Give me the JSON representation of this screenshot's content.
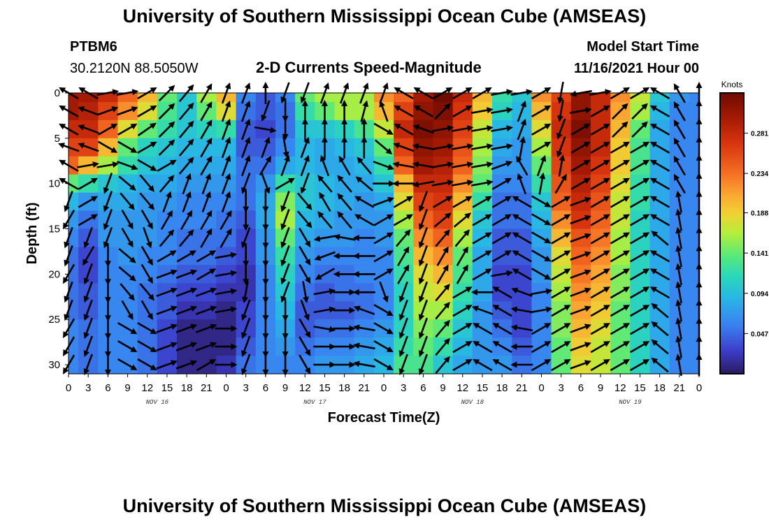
{
  "title_top": "University of Southern Mississippi Ocean Cube (AMSEAS)",
  "title_bottom": "University of Southern Mississippi Ocean Cube (AMSEAS)",
  "station": {
    "name": "PTBM6",
    "coords": "30.2120N  88.5050W"
  },
  "model_start": {
    "label": "Model Start Time",
    "value": "11/16/2021 Hour 00"
  },
  "chart_data": {
    "type": "heatmap",
    "title": "2-D Currents Speed-Magnitude",
    "xlabel": "Forecast Time(Z)",
    "ylabel": "Depth (ft)",
    "x_ticks": [
      "0",
      "3",
      "6",
      "9",
      "12",
      "15",
      "18",
      "21",
      "0",
      "3",
      "6",
      "9",
      "12",
      "15",
      "18",
      "21",
      "0",
      "3",
      "6",
      "9",
      "12",
      "15",
      "18",
      "21",
      "0",
      "3",
      "6",
      "9",
      "12",
      "15",
      "18",
      "21",
      "0"
    ],
    "day_labels": [
      "NOV 16",
      "NOV 17",
      "NOV 18",
      "NOV 19"
    ],
    "y_ticks": [
      0,
      5,
      10,
      15,
      20,
      25,
      30
    ],
    "ylim": [
      0,
      31
    ],
    "xlim_hours": [
      0,
      96
    ],
    "colorbar": {
      "unit": "Knots",
      "ticks": [
        "0.281",
        "0.234",
        "0.188",
        "0.141",
        "0.094",
        "0.047"
      ],
      "range": [
        0,
        0.328
      ]
    },
    "columns_hours": [
      0,
      3,
      6,
      9,
      12,
      15,
      18,
      21,
      24,
      27,
      30,
      33,
      36,
      39,
      42,
      45,
      48,
      51,
      54,
      57,
      60,
      63,
      66,
      69,
      72,
      75,
      78,
      81,
      84,
      87,
      90,
      93,
      96
    ],
    "depth_rows_ft": [
      0,
      2,
      4,
      6,
      8,
      10,
      12,
      14,
      16,
      18,
      20,
      22,
      24,
      26,
      28,
      30
    ],
    "speed_knots": [
      [
        0.3,
        0.3,
        0.28,
        0.24,
        0.2,
        0.14,
        0.1,
        0.16,
        0.2,
        0.06,
        0.04,
        0.06,
        0.14,
        0.16,
        0.16,
        0.16,
        0.22,
        0.24,
        0.3,
        0.33,
        0.28,
        0.2,
        0.12,
        0.1,
        0.22,
        0.26,
        0.31,
        0.28,
        0.22,
        0.17,
        0.1,
        0.07,
        0.06
      ],
      [
        0.3,
        0.29,
        0.26,
        0.22,
        0.18,
        0.13,
        0.1,
        0.14,
        0.18,
        0.05,
        0.04,
        0.05,
        0.12,
        0.14,
        0.16,
        0.16,
        0.2,
        0.26,
        0.31,
        0.32,
        0.27,
        0.19,
        0.11,
        0.09,
        0.2,
        0.27,
        0.31,
        0.28,
        0.21,
        0.16,
        0.09,
        0.06,
        0.06
      ],
      [
        0.28,
        0.28,
        0.24,
        0.18,
        0.14,
        0.12,
        0.1,
        0.11,
        0.12,
        0.04,
        0.03,
        0.05,
        0.1,
        0.1,
        0.11,
        0.13,
        0.17,
        0.28,
        0.32,
        0.31,
        0.26,
        0.17,
        0.09,
        0.08,
        0.18,
        0.28,
        0.32,
        0.28,
        0.2,
        0.14,
        0.08,
        0.06,
        0.06
      ],
      [
        0.26,
        0.26,
        0.2,
        0.14,
        0.11,
        0.1,
        0.09,
        0.09,
        0.09,
        0.04,
        0.04,
        0.06,
        0.09,
        0.08,
        0.09,
        0.1,
        0.14,
        0.26,
        0.31,
        0.3,
        0.25,
        0.16,
        0.08,
        0.07,
        0.16,
        0.27,
        0.31,
        0.28,
        0.19,
        0.13,
        0.08,
        0.06,
        0.06
      ],
      [
        0.24,
        0.2,
        0.16,
        0.12,
        0.1,
        0.09,
        0.08,
        0.08,
        0.08,
        0.05,
        0.05,
        0.08,
        0.09,
        0.08,
        0.08,
        0.09,
        0.12,
        0.24,
        0.3,
        0.29,
        0.24,
        0.15,
        0.07,
        0.07,
        0.14,
        0.26,
        0.3,
        0.27,
        0.19,
        0.13,
        0.08,
        0.06,
        0.06
      ],
      [
        0.14,
        0.12,
        0.1,
        0.09,
        0.08,
        0.08,
        0.07,
        0.07,
        0.07,
        0.05,
        0.07,
        0.12,
        0.1,
        0.09,
        0.08,
        0.08,
        0.1,
        0.2,
        0.28,
        0.28,
        0.22,
        0.14,
        0.06,
        0.06,
        0.12,
        0.25,
        0.29,
        0.26,
        0.18,
        0.12,
        0.08,
        0.06,
        0.06
      ],
      [
        0.09,
        0.07,
        0.08,
        0.08,
        0.07,
        0.07,
        0.06,
        0.06,
        0.06,
        0.05,
        0.08,
        0.15,
        0.1,
        0.09,
        0.08,
        0.07,
        0.08,
        0.18,
        0.26,
        0.27,
        0.2,
        0.12,
        0.05,
        0.05,
        0.1,
        0.24,
        0.28,
        0.25,
        0.17,
        0.12,
        0.08,
        0.06,
        0.06
      ],
      [
        0.07,
        0.05,
        0.07,
        0.07,
        0.07,
        0.06,
        0.06,
        0.06,
        0.05,
        0.04,
        0.08,
        0.16,
        0.09,
        0.08,
        0.07,
        0.07,
        0.07,
        0.16,
        0.24,
        0.26,
        0.18,
        0.1,
        0.05,
        0.05,
        0.09,
        0.22,
        0.27,
        0.24,
        0.17,
        0.11,
        0.08,
        0.06,
        0.06
      ],
      [
        0.06,
        0.04,
        0.07,
        0.07,
        0.07,
        0.06,
        0.05,
        0.05,
        0.05,
        0.03,
        0.07,
        0.14,
        0.08,
        0.07,
        0.07,
        0.06,
        0.07,
        0.14,
        0.22,
        0.24,
        0.16,
        0.09,
        0.04,
        0.04,
        0.08,
        0.2,
        0.25,
        0.23,
        0.16,
        0.11,
        0.08,
        0.06,
        0.06
      ],
      [
        0.05,
        0.03,
        0.06,
        0.07,
        0.06,
        0.06,
        0.05,
        0.05,
        0.04,
        0.03,
        0.07,
        0.12,
        0.07,
        0.06,
        0.06,
        0.06,
        0.06,
        0.13,
        0.2,
        0.22,
        0.14,
        0.08,
        0.04,
        0.04,
        0.07,
        0.18,
        0.24,
        0.22,
        0.16,
        0.11,
        0.08,
        0.06,
        0.06
      ],
      [
        0.05,
        0.03,
        0.06,
        0.06,
        0.06,
        0.05,
        0.04,
        0.04,
        0.03,
        0.02,
        0.06,
        0.11,
        0.06,
        0.05,
        0.05,
        0.06,
        0.06,
        0.12,
        0.18,
        0.2,
        0.13,
        0.08,
        0.03,
        0.03,
        0.07,
        0.17,
        0.23,
        0.21,
        0.15,
        0.11,
        0.08,
        0.06,
        0.06
      ],
      [
        0.05,
        0.04,
        0.06,
        0.06,
        0.05,
        0.04,
        0.03,
        0.03,
        0.02,
        0.02,
        0.06,
        0.1,
        0.05,
        0.04,
        0.05,
        0.05,
        0.06,
        0.11,
        0.17,
        0.18,
        0.12,
        0.08,
        0.03,
        0.03,
        0.06,
        0.16,
        0.22,
        0.2,
        0.15,
        0.11,
        0.08,
        0.06,
        0.06
      ],
      [
        0.05,
        0.04,
        0.06,
        0.06,
        0.05,
        0.04,
        0.02,
        0.02,
        0.01,
        0.03,
        0.06,
        0.09,
        0.04,
        0.04,
        0.04,
        0.05,
        0.06,
        0.11,
        0.16,
        0.16,
        0.11,
        0.07,
        0.04,
        0.03,
        0.06,
        0.15,
        0.21,
        0.19,
        0.14,
        0.11,
        0.08,
        0.06,
        0.06
      ],
      [
        0.06,
        0.05,
        0.06,
        0.06,
        0.05,
        0.03,
        0.01,
        0.01,
        0.01,
        0.03,
        0.06,
        0.08,
        0.04,
        0.05,
        0.05,
        0.06,
        0.07,
        0.11,
        0.15,
        0.14,
        0.1,
        0.07,
        0.05,
        0.03,
        0.06,
        0.15,
        0.2,
        0.18,
        0.14,
        0.11,
        0.08,
        0.06,
        0.06
      ],
      [
        0.06,
        0.05,
        0.06,
        0.06,
        0.05,
        0.03,
        0.01,
        0.01,
        0.01,
        0.04,
        0.06,
        0.07,
        0.05,
        0.06,
        0.06,
        0.07,
        0.08,
        0.12,
        0.14,
        0.12,
        0.09,
        0.07,
        0.06,
        0.04,
        0.06,
        0.14,
        0.19,
        0.17,
        0.14,
        0.11,
        0.08,
        0.06,
        0.06
      ],
      [
        0.06,
        0.05,
        0.06,
        0.06,
        0.05,
        0.03,
        0.01,
        0.01,
        0.02,
        0.05,
        0.06,
        0.06,
        0.06,
        0.07,
        0.07,
        0.08,
        0.09,
        0.13,
        0.13,
        0.1,
        0.08,
        0.07,
        0.07,
        0.05,
        0.06,
        0.14,
        0.18,
        0.17,
        0.14,
        0.11,
        0.08,
        0.06,
        0.06
      ]
    ],
    "vectors_note_dir_deg": "direction in compass degrees (0 = up/north), rows same as depth_rows_ft, columns same as columns_hours",
    "vector_dir_deg": [
      [
        300,
        300,
        80,
        80,
        60,
        45,
        40,
        30,
        20,
        20,
        0,
        200,
        200,
        20,
        20,
        20,
        20,
        300,
        300,
        60,
        60,
        60,
        80,
        80,
        60,
        190,
        260,
        80,
        60,
        60,
        300,
        330,
        0
      ],
      [
        300,
        290,
        70,
        70,
        60,
        45,
        40,
        30,
        20,
        20,
        200,
        180,
        0,
        0,
        0,
        15,
        340,
        300,
        300,
        45,
        60,
        80,
        80,
        20,
        60,
        190,
        80,
        60,
        45,
        45,
        300,
        330,
        0
      ],
      [
        300,
        290,
        60,
        60,
        55,
        45,
        40,
        30,
        20,
        20,
        100,
        180,
        0,
        0,
        0,
        0,
        120,
        300,
        290,
        80,
        80,
        80,
        80,
        20,
        60,
        200,
        60,
        60,
        45,
        45,
        300,
        330,
        0
      ],
      [
        290,
        290,
        120,
        120,
        60,
        45,
        40,
        30,
        20,
        20,
        20,
        170,
        20,
        0,
        0,
        0,
        130,
        290,
        280,
        80,
        80,
        80,
        80,
        10,
        60,
        200,
        60,
        60,
        60,
        60,
        300,
        330,
        0
      ],
      [
        300,
        80,
        80,
        110,
        120,
        60,
        40,
        30,
        20,
        20,
        30,
        20,
        20,
        340,
        330,
        320,
        110,
        280,
        280,
        80,
        80,
        80,
        70,
        330,
        20,
        10,
        60,
        60,
        60,
        60,
        300,
        330,
        0
      ],
      [
        300,
        60,
        200,
        130,
        140,
        40,
        20,
        20,
        20,
        200,
        160,
        60,
        200,
        320,
        320,
        310,
        90,
        270,
        260,
        80,
        80,
        80,
        60,
        340,
        10,
        30,
        60,
        60,
        60,
        60,
        300,
        330,
        0
      ],
      [
        200,
        60,
        200,
        140,
        140,
        20,
        20,
        20,
        20,
        180,
        180,
        200,
        140,
        330,
        320,
        300,
        70,
        60,
        200,
        60,
        60,
        60,
        60,
        300,
        120,
        60,
        70,
        60,
        60,
        60,
        300,
        350,
        0
      ],
      [
        210,
        60,
        200,
        150,
        150,
        30,
        30,
        30,
        30,
        180,
        180,
        200,
        140,
        320,
        320,
        300,
        60,
        60,
        200,
        50,
        50,
        60,
        60,
        300,
        120,
        60,
        70,
        60,
        60,
        60,
        300,
        350,
        0
      ],
      [
        200,
        200,
        200,
        150,
        160,
        40,
        40,
        30,
        30,
        200,
        180,
        200,
        150,
        260,
        280,
        270,
        60,
        40,
        200,
        40,
        40,
        60,
        60,
        300,
        120,
        60,
        70,
        60,
        60,
        60,
        310,
        350,
        0
      ],
      [
        200,
        210,
        180,
        130,
        150,
        60,
        60,
        60,
        80,
        180,
        180,
        200,
        150,
        250,
        270,
        270,
        60,
        30,
        200,
        30,
        30,
        60,
        60,
        300,
        120,
        60,
        70,
        60,
        60,
        60,
        300,
        350,
        0
      ],
      [
        210,
        200,
        180,
        130,
        150,
        70,
        70,
        60,
        80,
        180,
        180,
        200,
        150,
        240,
        270,
        270,
        60,
        30,
        200,
        30,
        30,
        60,
        80,
        300,
        120,
        60,
        70,
        60,
        60,
        60,
        300,
        350,
        0
      ],
      [
        200,
        200,
        180,
        140,
        140,
        70,
        70,
        70,
        80,
        190,
        180,
        200,
        170,
        80,
        90,
        270,
        160,
        200,
        200,
        40,
        60,
        270,
        300,
        290,
        80,
        60,
        70,
        60,
        60,
        60,
        300,
        350,
        0
      ],
      [
        200,
        200,
        180,
        150,
        150,
        70,
        70,
        70,
        80,
        200,
        180,
        180,
        160,
        80,
        90,
        290,
        120,
        200,
        200,
        40,
        60,
        290,
        300,
        280,
        80,
        60,
        70,
        60,
        60,
        60,
        310,
        350,
        0
      ],
      [
        210,
        200,
        180,
        120,
        120,
        70,
        70,
        70,
        90,
        200,
        180,
        180,
        150,
        100,
        90,
        280,
        120,
        200,
        200,
        40,
        60,
        300,
        300,
        280,
        60,
        60,
        70,
        60,
        60,
        60,
        310,
        350,
        0
      ],
      [
        210,
        200,
        180,
        120,
        120,
        70,
        70,
        70,
        90,
        200,
        180,
        180,
        150,
        90,
        90,
        280,
        120,
        200,
        200,
        40,
        60,
        300,
        300,
        270,
        60,
        60,
        70,
        60,
        60,
        60,
        310,
        350,
        0
      ],
      [
        210,
        200,
        180,
        120,
        120,
        70,
        70,
        60,
        90,
        200,
        180,
        180,
        150,
        90,
        90,
        280,
        120,
        200,
        200,
        40,
        60,
        300,
        300,
        270,
        60,
        60,
        70,
        60,
        60,
        60,
        310,
        350,
        0
      ]
    ]
  }
}
